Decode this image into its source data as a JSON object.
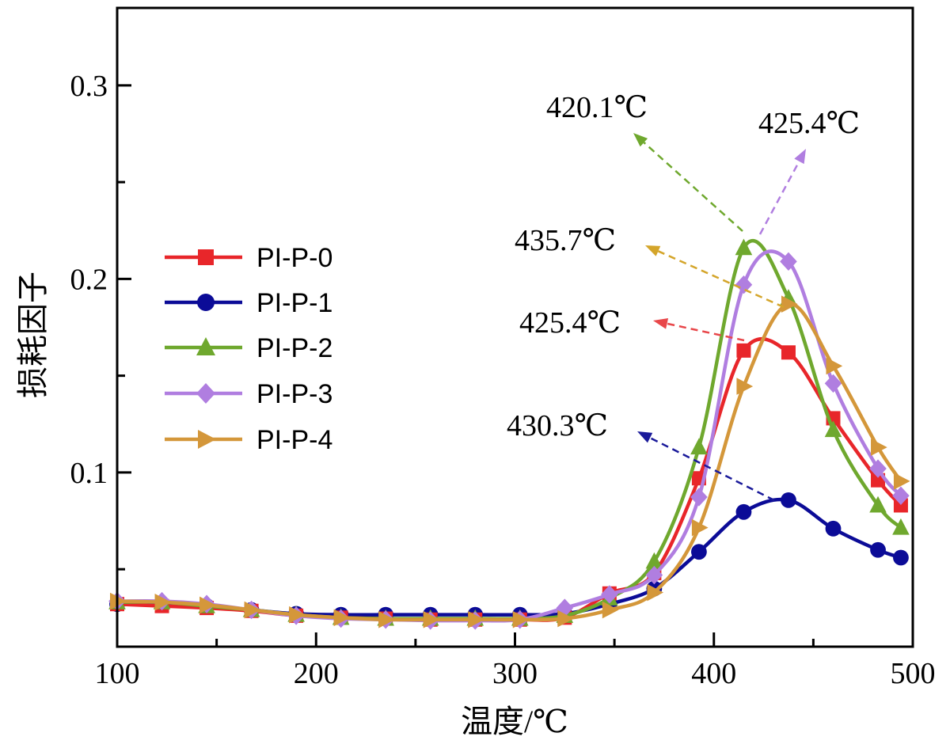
{
  "chart_data": {
    "type": "line",
    "xlabel": "温度/℃",
    "ylabel": "损耗因子",
    "xlim": [
      100,
      500
    ],
    "ylim": [
      0.01,
      0.34
    ],
    "xticks": [
      "100",
      "200",
      "300",
      "400",
      "500"
    ],
    "yticks": [
      "0.1",
      "0.2",
      "0.3"
    ],
    "grid": false,
    "legend_position": "center-left",
    "x": [
      100,
      122.5,
      145,
      167.5,
      190,
      212.5,
      235,
      257.5,
      280,
      302.5,
      325,
      347.5,
      370,
      392.5,
      415,
      437.5,
      460,
      482.5,
      494
    ],
    "series": [
      {
        "name": "PI-P-0",
        "color": "#e8262a",
        "marker": "square",
        "values": [
          0.032,
          0.031,
          0.03,
          0.0285,
          0.026,
          0.025,
          0.0245,
          0.024,
          0.024,
          0.024,
          0.025,
          0.0375,
          0.048,
          0.097,
          0.163,
          0.162,
          0.128,
          0.096,
          0.083
        ]
      },
      {
        "name": "PI-P-1",
        "color": "#0b0b97",
        "marker": "circle",
        "values": [
          0.032,
          0.032,
          0.031,
          0.029,
          0.027,
          0.0265,
          0.0265,
          0.0265,
          0.0265,
          0.0265,
          0.027,
          0.032,
          0.04,
          0.059,
          0.0796,
          0.0857,
          0.071,
          0.06,
          0.056
        ]
      },
      {
        "name": "PI-P-2",
        "color": "#6fa82e",
        "marker": "triangle-up",
        "values": [
          0.033,
          0.033,
          0.031,
          0.029,
          0.0265,
          0.025,
          0.0245,
          0.0245,
          0.0245,
          0.0245,
          0.026,
          0.035,
          0.054,
          0.113,
          0.216,
          0.19,
          0.122,
          0.083,
          0.0715
        ]
      },
      {
        "name": "PI-P-3",
        "color": "#b07ee0",
        "marker": "diamond",
        "values": [
          0.0335,
          0.0335,
          0.032,
          0.029,
          0.026,
          0.0245,
          0.024,
          0.0235,
          0.0235,
          0.024,
          0.03,
          0.037,
          0.047,
          0.0873,
          0.197,
          0.209,
          0.146,
          0.102,
          0.088
        ]
      },
      {
        "name": "PI-P-4",
        "color": "#d4973a",
        "marker": "triangle-right",
        "values": [
          0.0335,
          0.033,
          0.0315,
          0.029,
          0.0265,
          0.025,
          0.024,
          0.024,
          0.024,
          0.024,
          0.0245,
          0.029,
          0.038,
          0.0715,
          0.1445,
          0.187,
          0.155,
          0.113,
          0.0955
        ]
      }
    ],
    "annotations": [
      {
        "text": "420.1℃",
        "series": "PI-P-2",
        "color": "#6fa82e"
      },
      {
        "text": "425.4℃",
        "series": "PI-P-3",
        "color": "#b07ee0"
      },
      {
        "text": "435.7℃",
        "series": "PI-P-4",
        "color": "#d4a52a"
      },
      {
        "text": "425.4℃",
        "series": "PI-P-0",
        "color": "#e8474a"
      },
      {
        "text": "430.3℃",
        "series": "PI-P-1",
        "color": "#1a1a9a"
      }
    ]
  }
}
